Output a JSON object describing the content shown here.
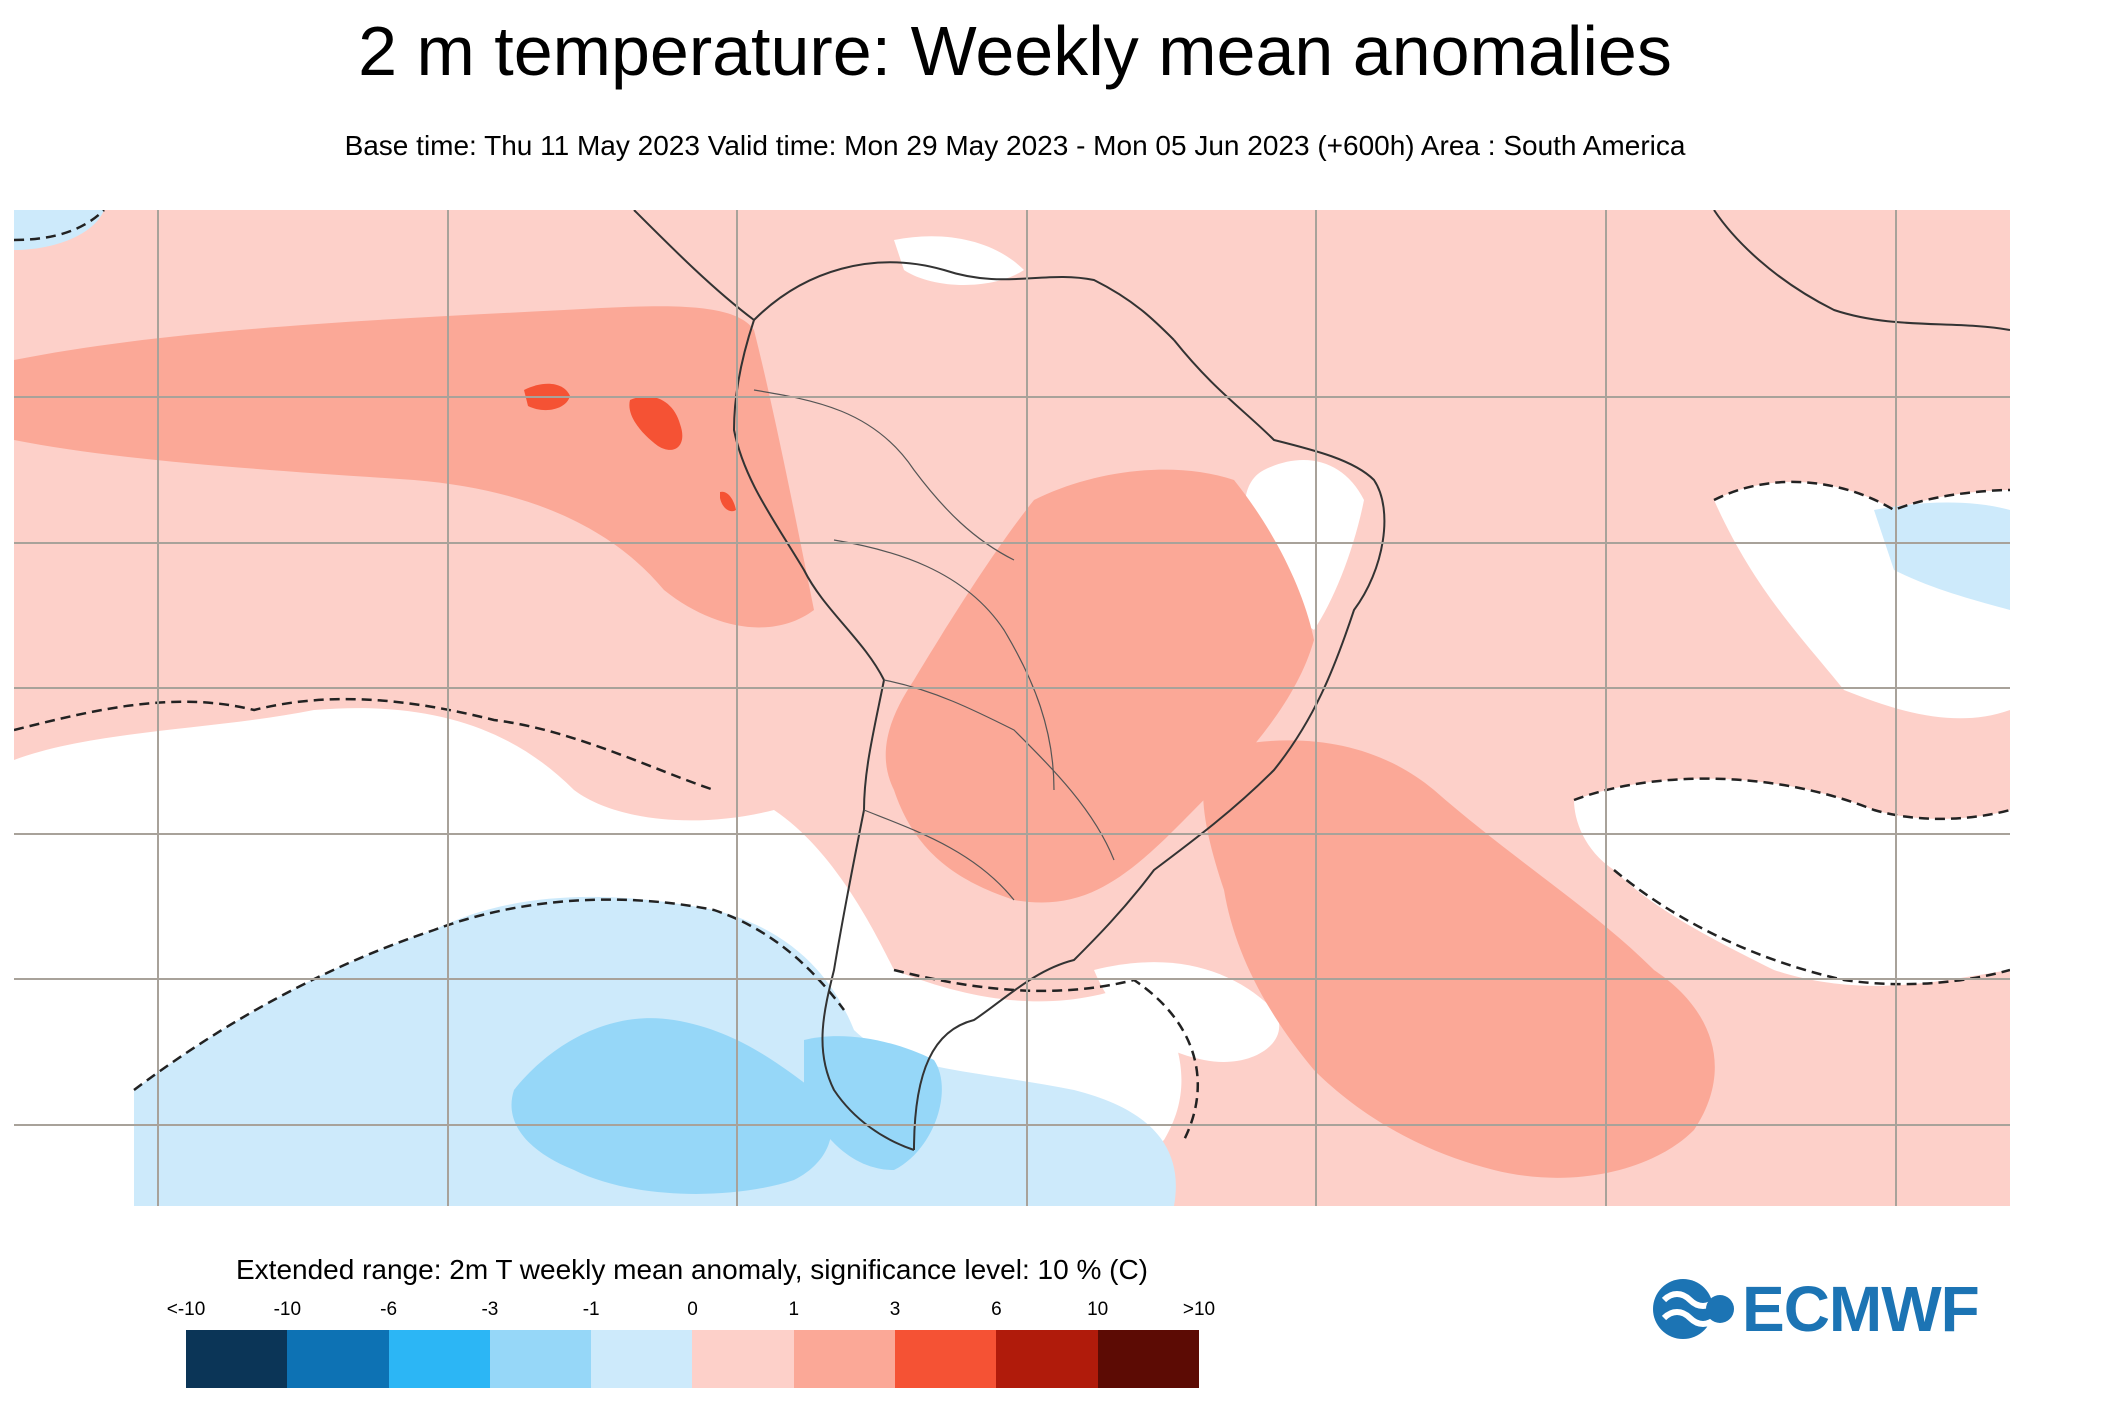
{
  "title": "2 m temperature: Weekly mean anomalies",
  "subtitle": "Base time: Thu 11 May 2023 Valid time: Mon 29 May 2023 - Mon 05 Jun 2023 (+600h) Area : South America",
  "legend": {
    "title": "Extended range: 2m T weekly mean anomaly, significance level: 10 % (C)",
    "tick_labels": [
      "<-10",
      "-10",
      "-6",
      "-3",
      "-1",
      "0",
      "1",
      "3",
      "6",
      "10",
      ">10"
    ],
    "colors": [
      "#0b3557",
      "#0d72b4",
      "#2cb6f5",
      "#96d7f8",
      "#cdeafb",
      "#fdd0c9",
      "#fba897",
      "#f55234",
      "#b01b0b",
      "#5c0b04"
    ]
  },
  "map": {
    "area": "South America",
    "background_color": "#ffffff",
    "grid_color": "#a8a29a",
    "coastline_color": "#333333",
    "contour_style": "dashed"
  },
  "logo": {
    "text": "ECMWF",
    "icon": "ecmwf-logo-icon",
    "color": "#1c74b4"
  }
}
